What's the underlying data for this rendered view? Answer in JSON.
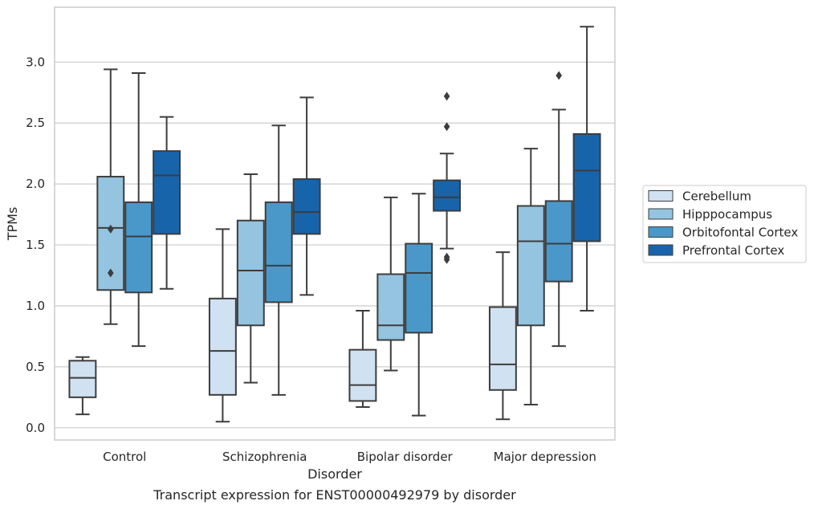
{
  "caption": "Transcript expression for ENST00000492979 by disorder",
  "chart_data": {
    "type": "boxplot",
    "xlabel": "Disorder",
    "ylabel": "TPMs",
    "ylim": [
      -0.1,
      3.45
    ],
    "yticks": [
      "0.0",
      "0.5",
      "1.0",
      "1.5",
      "2.0",
      "2.5",
      "3.0"
    ],
    "grid": "horizontal",
    "legend_position": "right",
    "categories": [
      "Control",
      "Schizophrenia",
      "Bipolar disorder",
      "Major depression"
    ],
    "series": [
      {
        "name": "Cerebellum",
        "color": "#d0e1f2",
        "boxes": [
          {
            "min": 0.11,
            "q1": 0.25,
            "median": 0.41,
            "q3": 0.55,
            "max": 0.58,
            "outliers": []
          },
          {
            "min": 0.05,
            "q1": 0.27,
            "median": 0.63,
            "q3": 1.06,
            "max": 1.63,
            "outliers": []
          },
          {
            "min": 0.17,
            "q1": 0.22,
            "median": 0.35,
            "q3": 0.64,
            "max": 0.96,
            "outliers": []
          },
          {
            "min": 0.07,
            "q1": 0.31,
            "median": 0.52,
            "q3": 0.99,
            "max": 1.44,
            "outliers": []
          }
        ]
      },
      {
        "name": "Hipppocampus",
        "color": "#94c4df",
        "boxes": [
          {
            "min": 0.85,
            "q1": 1.13,
            "median": 1.64,
            "q3": 2.06,
            "max": 2.94,
            "outliers": [
              1.27,
              1.63
            ]
          },
          {
            "min": 0.37,
            "q1": 0.84,
            "median": 1.29,
            "q3": 1.7,
            "max": 2.08,
            "outliers": []
          },
          {
            "min": 0.47,
            "q1": 0.72,
            "median": 0.84,
            "q3": 1.26,
            "max": 1.89,
            "outliers": []
          },
          {
            "min": 0.19,
            "q1": 0.84,
            "median": 1.53,
            "q3": 1.82,
            "max": 2.29,
            "outliers": []
          }
        ]
      },
      {
        "name": "Orbitofontal Cortex",
        "color": "#4a98c9",
        "boxes": [
          {
            "min": 0.67,
            "q1": 1.11,
            "median": 1.57,
            "q3": 1.85,
            "max": 2.91,
            "outliers": []
          },
          {
            "min": 0.27,
            "q1": 1.03,
            "median": 1.33,
            "q3": 1.85,
            "max": 2.48,
            "outliers": []
          },
          {
            "min": 0.1,
            "q1": 0.78,
            "median": 1.27,
            "q3": 1.51,
            "max": 1.92,
            "outliers": []
          },
          {
            "min": 0.67,
            "q1": 1.2,
            "median": 1.51,
            "q3": 1.86,
            "max": 2.61,
            "outliers": [
              2.89
            ]
          }
        ]
      },
      {
        "name": "Prefrontal Cortex",
        "color": "#1764ab",
        "boxes": [
          {
            "min": 1.14,
            "q1": 1.59,
            "median": 2.07,
            "q3": 2.27,
            "max": 2.55,
            "outliers": []
          },
          {
            "min": 1.09,
            "q1": 1.59,
            "median": 1.77,
            "q3": 2.04,
            "max": 2.71,
            "outliers": []
          },
          {
            "min": 1.47,
            "q1": 1.78,
            "median": 1.89,
            "q3": 2.03,
            "max": 2.25,
            "outliers": [
              1.38,
              1.4,
              2.47,
              2.72
            ]
          },
          {
            "min": 0.96,
            "q1": 1.53,
            "median": 2.11,
            "q3": 2.41,
            "max": 3.29,
            "outliers": []
          }
        ]
      }
    ]
  }
}
